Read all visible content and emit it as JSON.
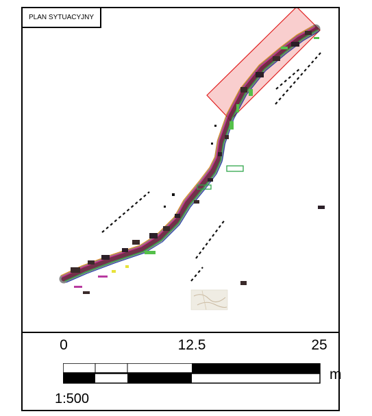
{
  "map": {
    "title": "PLAN SYTUACYJNY",
    "highlight_color": "#e02020",
    "highlight_fill": "#f4a6a6"
  },
  "scale": {
    "ticks": [
      "0",
      "12.5",
      "25"
    ],
    "unit": "m",
    "ratio": "1:500"
  }
}
